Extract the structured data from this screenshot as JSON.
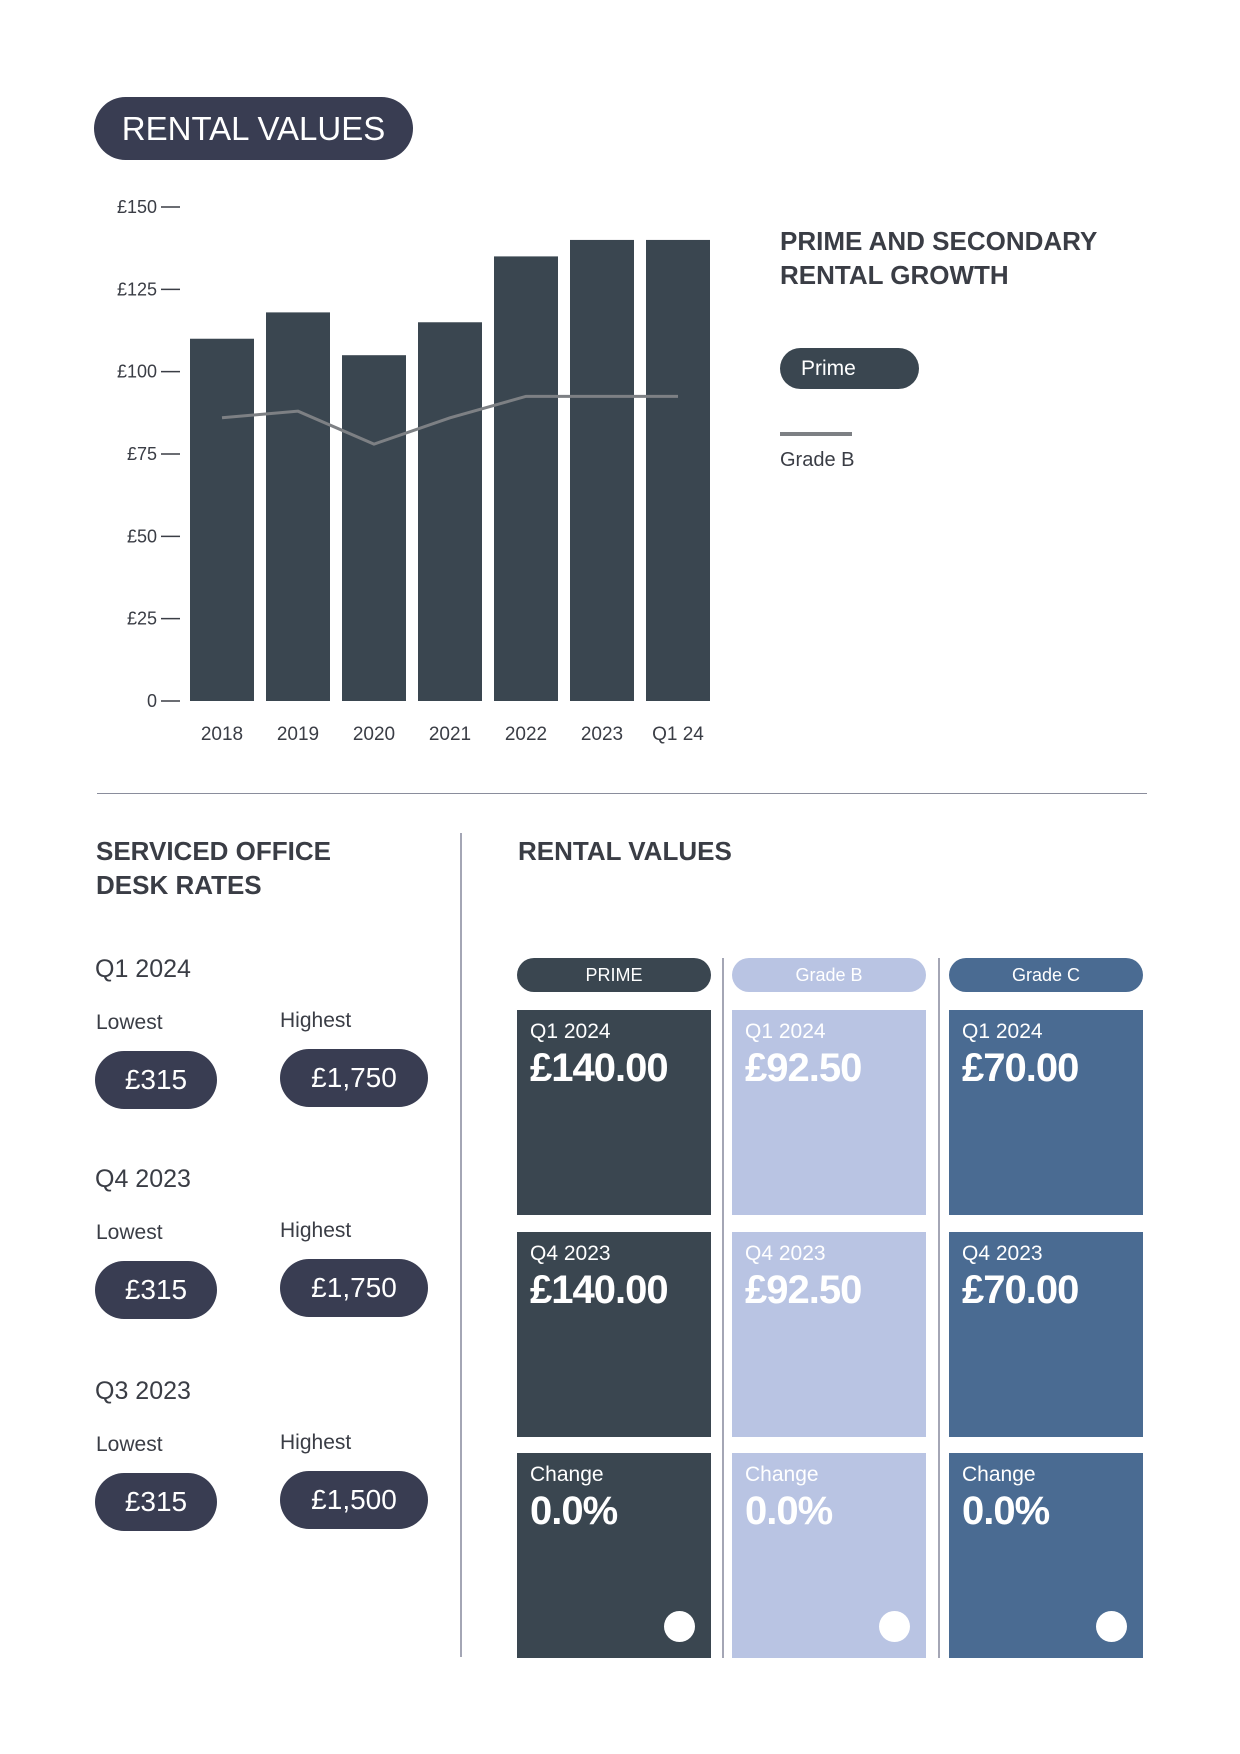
{
  "title": "RENTAL VALUES",
  "chart_data": {
    "type": "bar",
    "title": "PRIME AND SECONDARY RENTAL GROWTH",
    "categories": [
      "2018",
      "2019",
      "2020",
      "2021",
      "2022",
      "2023",
      "Q1 24"
    ],
    "series": [
      {
        "name": "Prime",
        "kind": "bar",
        "color": "#3a4650",
        "values": [
          110,
          118,
          105,
          115,
          135,
          140,
          140
        ]
      },
      {
        "name": "Grade B",
        "kind": "line",
        "color": "#7d8084",
        "values": [
          86,
          88,
          78,
          86,
          92.5,
          92.5,
          92.5
        ]
      }
    ],
    "yticks": [
      {
        "v": 0,
        "label": "0"
      },
      {
        "v": 25,
        "label": "£25"
      },
      {
        "v": 50,
        "label": "£50"
      },
      {
        "v": 75,
        "label": "£75"
      },
      {
        "v": 100,
        "label": "£100"
      },
      {
        "v": 125,
        "label": "£125"
      },
      {
        "v": 150,
        "label": "£150"
      }
    ],
    "ylim": [
      0,
      150
    ],
    "xlabel": "",
    "ylabel": "",
    "legend_position": "right"
  },
  "legend": {
    "title_line1": "PRIME AND SECONDARY",
    "title_line2": "RENTAL GROWTH",
    "prime": "Prime",
    "grade_b": "Grade B"
  },
  "desk": {
    "title_line1": "SERVICED OFFICE",
    "title_line2": "DESK RATES",
    "periods": [
      {
        "period": "Q1 2024",
        "lowest_label": "Lowest",
        "lowest": "£315",
        "highest_label": "Highest",
        "highest": "£1,750"
      },
      {
        "period": "Q4 2023",
        "lowest_label": "Lowest",
        "lowest": "£315",
        "highest_label": "Highest",
        "highest": "£1,750"
      },
      {
        "period": "Q3 2023",
        "lowest_label": "Lowest",
        "lowest": "£315",
        "highest_label": "Highest",
        "highest": "£1,500"
      }
    ]
  },
  "rental": {
    "title": "RENTAL VALUES",
    "columns": [
      {
        "label": "PRIME",
        "color": "#3a4650",
        "cards": [
          {
            "period": "Q1 2024",
            "value": "£140.00"
          },
          {
            "period": "Q4 2023",
            "value": "£140.00"
          },
          {
            "period": "Change",
            "value": "0.0%"
          }
        ]
      },
      {
        "label": "Grade B",
        "color": "#b9c4e3",
        "cards": [
          {
            "period": "Q1 2024",
            "value": "£92.50"
          },
          {
            "period": "Q4 2023",
            "value": "£92.50"
          },
          {
            "period": "Change",
            "value": "0.0%"
          }
        ]
      },
      {
        "label": "Grade C",
        "color": "#4a6b92",
        "cards": [
          {
            "period": "Q1 2024",
            "value": "£70.00"
          },
          {
            "period": "Q4 2023",
            "value": "£70.00"
          },
          {
            "period": "Change",
            "value": "0.0%"
          }
        ]
      }
    ]
  }
}
